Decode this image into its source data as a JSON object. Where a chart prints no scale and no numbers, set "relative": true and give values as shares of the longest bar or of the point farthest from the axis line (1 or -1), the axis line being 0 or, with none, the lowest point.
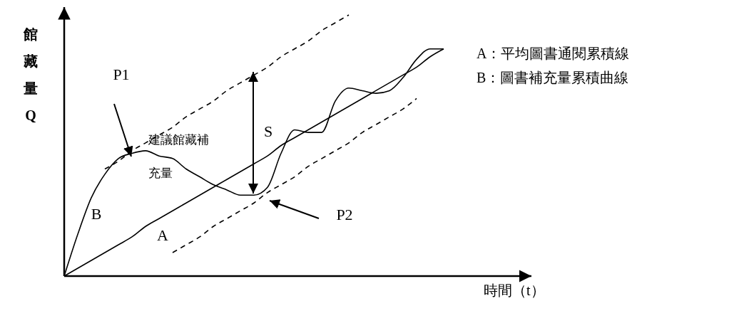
{
  "chart_data": {
    "type": "line",
    "relative": true,
    "xlabel": "時間（t）",
    "ylabel": "館藏量Q",
    "categories": [
      null,
      null,
      null,
      null,
      null,
      null,
      null,
      null,
      null,
      null,
      null,
      null,
      null,
      null,
      null,
      null,
      null,
      null,
      null,
      null,
      null,
      null,
      null,
      null,
      null,
      null,
      null,
      null,
      null
    ],
    "series": [
      {
        "name": "A",
        "color": "#000000",
        "line_style": "solid",
        "values": [
          0,
          0.03,
          0.06,
          0.09,
          0.12,
          0.15,
          0.19,
          0.22,
          0.25,
          0.28,
          0.31,
          0.34,
          0.37,
          0.4,
          0.43,
          0.46,
          0.5,
          0.53,
          0.56,
          0.59,
          0.62,
          0.65,
          0.68,
          0.71,
          0.74,
          0.77,
          0.8,
          0.84,
          0.87
        ]
      },
      {
        "name": "B",
        "color": "#000000",
        "line_style": "solid",
        "values": [
          0,
          0.16,
          0.3,
          0.39,
          0.45,
          0.47,
          0.48,
          0.46,
          0.45,
          0.41,
          0.38,
          0.35,
          0.33,
          0.31,
          0.31,
          0.34,
          0.47,
          0.56,
          0.55,
          0.55,
          0.67,
          0.72,
          0.71,
          0.7,
          0.71,
          0.76,
          0.83,
          0.87,
          0.87
        ]
      },
      {
        "color": "#000000",
        "line_style": "dashed",
        "values": [
          null,
          null,
          null,
          0.41,
          0.44,
          0.48,
          0.51,
          0.54,
          0.57,
          0.61,
          0.64,
          0.67,
          0.71,
          0.74,
          0.77,
          0.8,
          0.84,
          0.87,
          0.9,
          0.94,
          0.97,
          1.0,
          null,
          null,
          null,
          null,
          null,
          null,
          null
        ]
      },
      {
        "color": "#000000",
        "line_style": "dashed",
        "values": [
          null,
          null,
          null,
          null,
          null,
          null,
          null,
          null,
          0.09,
          0.12,
          0.15,
          0.19,
          0.22,
          0.25,
          0.28,
          0.32,
          0.35,
          0.38,
          0.42,
          0.45,
          0.48,
          0.51,
          0.55,
          0.58,
          0.61,
          0.64,
          0.68,
          null,
          null
        ]
      }
    ],
    "annotations": [
      "P1",
      "P2",
      "S",
      "建議館藏補",
      "充量",
      "A：平均圖書通閱累積線",
      "B：圖書補充量累積曲線"
    ]
  }
}
